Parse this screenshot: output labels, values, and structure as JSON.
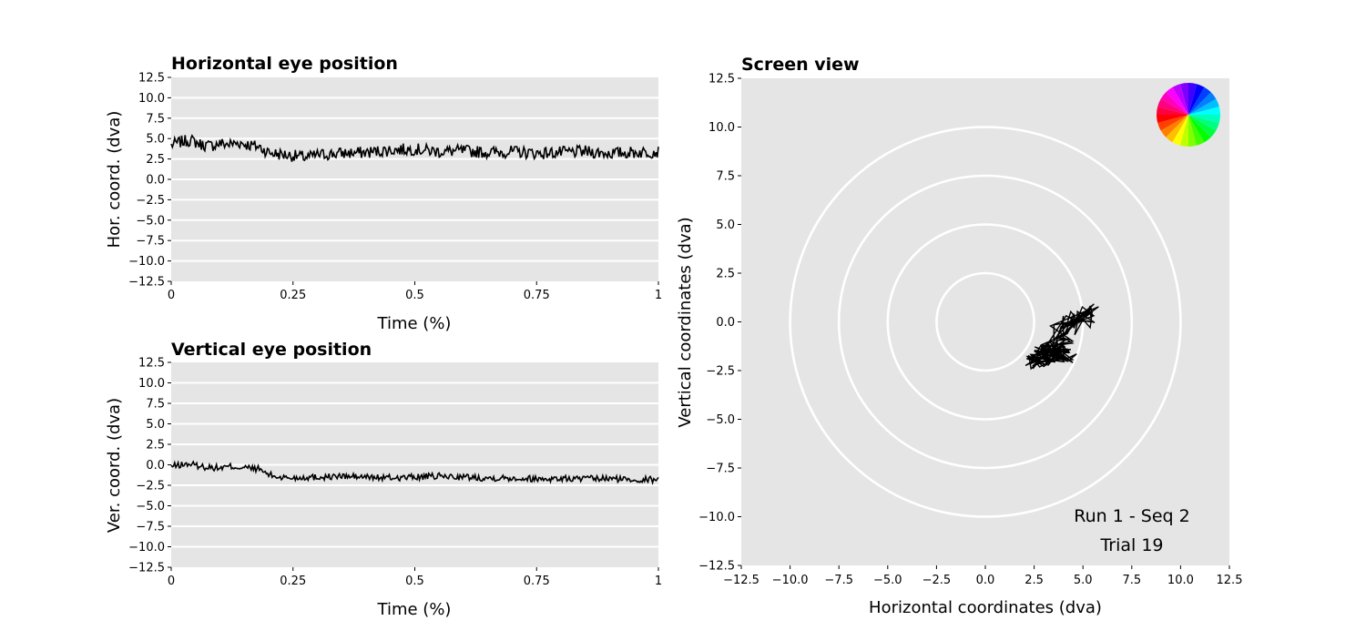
{
  "chart_data": [
    {
      "type": "line",
      "title": "Horizontal eye position",
      "xlabel": "Time (%)",
      "ylabel": "Hor. coord. (dva)",
      "xlim": [
        0,
        1
      ],
      "ylim": [
        -12.5,
        12.5
      ],
      "x_ticks": [
        "0",
        "0.25",
        "0.5",
        "0.75",
        "1"
      ],
      "x_tick_values": [
        0,
        0.25,
        0.5,
        0.75,
        1
      ],
      "y_ticks": [
        "12.5",
        "10.0",
        "7.5",
        "5.0",
        "2.5",
        "0.0",
        "−2.5",
        "−5.0",
        "−7.5",
        "−10.0",
        "−12.5"
      ],
      "y_tick_values": [
        12.5,
        10,
        7.5,
        5,
        2.5,
        0,
        -2.5,
        -5,
        -7.5,
        -10,
        -12.5
      ],
      "grid": "horizontal",
      "series": [
        {
          "x": [
            0,
            0.02,
            0.04,
            0.06,
            0.08,
            0.1,
            0.12,
            0.14,
            0.16,
            0.18,
            0.2,
            0.22,
            0.25,
            0.28,
            0.3,
            0.35,
            0.4,
            0.45,
            0.5,
            0.55,
            0.6,
            0.65,
            0.7,
            0.75,
            0.8,
            0.85,
            0.9,
            0.95,
            1.0
          ],
          "values": [
            4.2,
            4.6,
            4.8,
            4.3,
            4.1,
            4.4,
            4.3,
            4.5,
            4.2,
            4.0,
            3.3,
            3.1,
            2.9,
            2.7,
            3.0,
            3.2,
            3.3,
            3.6,
            3.7,
            3.4,
            3.5,
            3.3,
            3.4,
            3.2,
            3.3,
            3.4,
            3.2,
            3.3,
            3.4
          ]
        }
      ]
    },
    {
      "type": "line",
      "title": "Vertical eye position",
      "xlabel": "Time (%)",
      "ylabel": "Ver. coord. (dva)",
      "xlim": [
        0,
        1
      ],
      "ylim": [
        -12.5,
        12.5
      ],
      "x_ticks": [
        "0",
        "0.25",
        "0.5",
        "0.75",
        "1"
      ],
      "x_tick_values": [
        0,
        0.25,
        0.5,
        0.75,
        1
      ],
      "y_ticks": [
        "12.5",
        "10.0",
        "7.5",
        "5.0",
        "2.5",
        "0.0",
        "−2.5",
        "−5.0",
        "−7.5",
        "−10.0",
        "−12.5"
      ],
      "y_tick_values": [
        12.5,
        10,
        7.5,
        5,
        2.5,
        0,
        -2.5,
        -5,
        -7.5,
        -10,
        -12.5
      ],
      "grid": "horizontal",
      "series": [
        {
          "x": [
            0,
            0.02,
            0.04,
            0.06,
            0.08,
            0.1,
            0.12,
            0.14,
            0.16,
            0.18,
            0.2,
            0.22,
            0.25,
            0.28,
            0.3,
            0.35,
            0.4,
            0.45,
            0.5,
            0.55,
            0.6,
            0.65,
            0.7,
            0.75,
            0.8,
            0.85,
            0.9,
            0.95,
            1.0
          ],
          "values": [
            -0.2,
            0.0,
            0.1,
            -0.2,
            -0.3,
            -0.4,
            -0.2,
            -0.3,
            -0.4,
            -0.5,
            -1.2,
            -1.5,
            -1.6,
            -1.5,
            -1.5,
            -1.4,
            -1.5,
            -1.6,
            -1.5,
            -1.4,
            -1.5,
            -1.6,
            -1.6,
            -1.7,
            -1.7,
            -1.7,
            -1.7,
            -1.8,
            -1.8
          ]
        }
      ]
    },
    {
      "type": "scatter",
      "title": "Screen view",
      "xlabel": "Horizontal coordinates (dva)",
      "ylabel": "Vertical coordinates (dva)",
      "xlim": [
        -12.5,
        12.5
      ],
      "ylim": [
        -12.5,
        12.5
      ],
      "x_ticks": [
        "−12.5",
        "−10.0",
        "−7.5",
        "−5.0",
        "−2.5",
        "0.0",
        "2.5",
        "5.0",
        "7.5",
        "10.0",
        "12.5"
      ],
      "x_tick_values": [
        -12.5,
        -10,
        -7.5,
        -5,
        -2.5,
        0,
        2.5,
        5,
        7.5,
        10,
        12.5
      ],
      "y_ticks": [
        "12.5",
        "10.0",
        "7.5",
        "5.0",
        "2.5",
        "0.0",
        "−2.5",
        "−5.0",
        "−7.5",
        "−10.0",
        "−12.5"
      ],
      "y_tick_values": [
        12.5,
        10,
        7.5,
        5,
        2.5,
        0,
        -2.5,
        -5,
        -7.5,
        -10,
        -12.5
      ],
      "rings_radius": [
        2.5,
        5,
        7.5,
        10
      ],
      "series": [
        {
          "x": [
            4.2,
            4.6,
            5.0,
            5.3,
            4.8,
            4.5,
            4.9,
            5.2,
            4.0,
            3.8,
            3.4,
            3.2,
            2.9,
            2.6,
            2.4,
            2.8,
            3.1,
            3.5,
            3.3,
            3.0,
            2.7,
            3.2,
            3.6,
            3.9,
            3.4,
            3.0,
            3.7,
            4.1,
            3.8,
            3.5
          ],
          "y": [
            0.0,
            -0.2,
            0.3,
            0.5,
            -0.4,
            0.1,
            0.2,
            0.6,
            -0.5,
            -0.9,
            -1.2,
            -1.5,
            -1.7,
            -1.9,
            -2.1,
            -1.8,
            -1.6,
            -1.4,
            -1.9,
            -2.0,
            -1.7,
            -1.5,
            -1.3,
            -1.6,
            -1.8,
            -1.6,
            -1.7,
            -1.6,
            -1.8,
            -1.7
          ]
        }
      ],
      "annotations": [
        "Run 1 - Seq 2",
        "Trial 19"
      ],
      "color_wheel": "top-right"
    }
  ],
  "colors": {
    "axes_bg": "#e5e5e5",
    "grid": "#ffffff",
    "line": "#000000"
  }
}
